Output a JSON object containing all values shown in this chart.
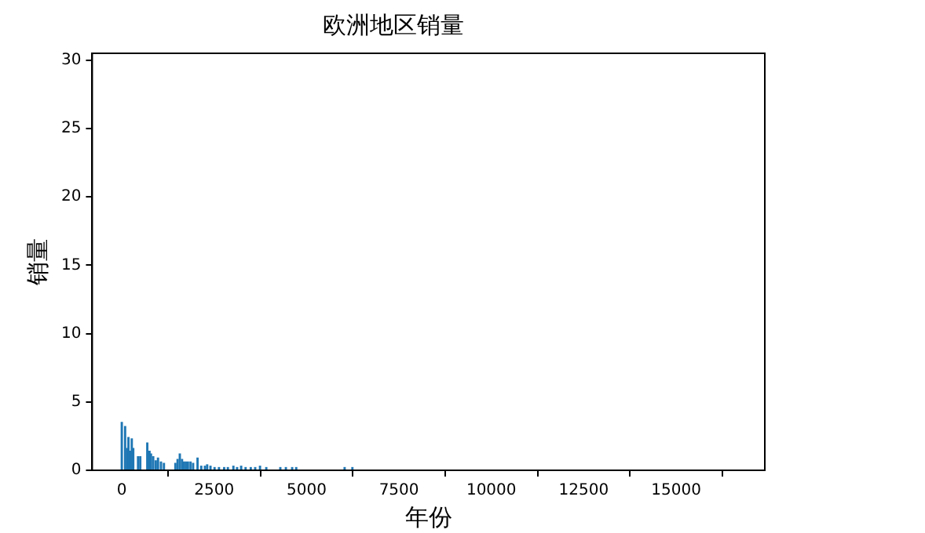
{
  "chart_data": {
    "type": "bar",
    "title": "欧洲地区销量",
    "xlabel": "年份",
    "ylabel": "销量",
    "x": [
      0,
      90,
      140,
      180,
      230,
      270,
      310,
      440,
      500,
      690,
      750,
      790,
      850,
      920,
      980,
      1060,
      1140,
      1450,
      1510,
      1570,
      1630,
      1670,
      1730,
      1790,
      1860,
      1930,
      2050,
      2150,
      2250,
      2310,
      2400,
      2510,
      2630,
      2770,
      2870,
      3020,
      3120,
      3230,
      3350,
      3490,
      3610,
      3740,
      3910,
      4290,
      4440,
      4610,
      4720,
      6030,
      6240
    ],
    "values": [
      3.5,
      3.2,
      1.6,
      2.4,
      1.4,
      2.3,
      1.6,
      1.0,
      1.0,
      2.0,
      1.4,
      1.2,
      1.0,
      0.7,
      0.9,
      0.6,
      0.5,
      0.5,
      0.8,
      1.2,
      0.8,
      0.6,
      0.6,
      0.6,
      0.6,
      0.5,
      0.9,
      0.3,
      0.3,
      0.4,
      0.3,
      0.2,
      0.2,
      0.2,
      0.2,
      0.3,
      0.2,
      0.3,
      0.2,
      0.2,
      0.2,
      0.3,
      0.2,
      0.2,
      0.2,
      0.2,
      0.2,
      0.2,
      0.2
    ],
    "color": "#1f77b4",
    "xlim": [
      -800,
      17400
    ],
    "xticks": [
      0,
      2500,
      5000,
      7500,
      10000,
      12500,
      15000
    ],
    "ylim": [
      0,
      30.5
    ],
    "yticks": [
      0,
      5,
      10,
      15,
      20,
      25,
      30
    ],
    "grid": false,
    "legend": false
  }
}
